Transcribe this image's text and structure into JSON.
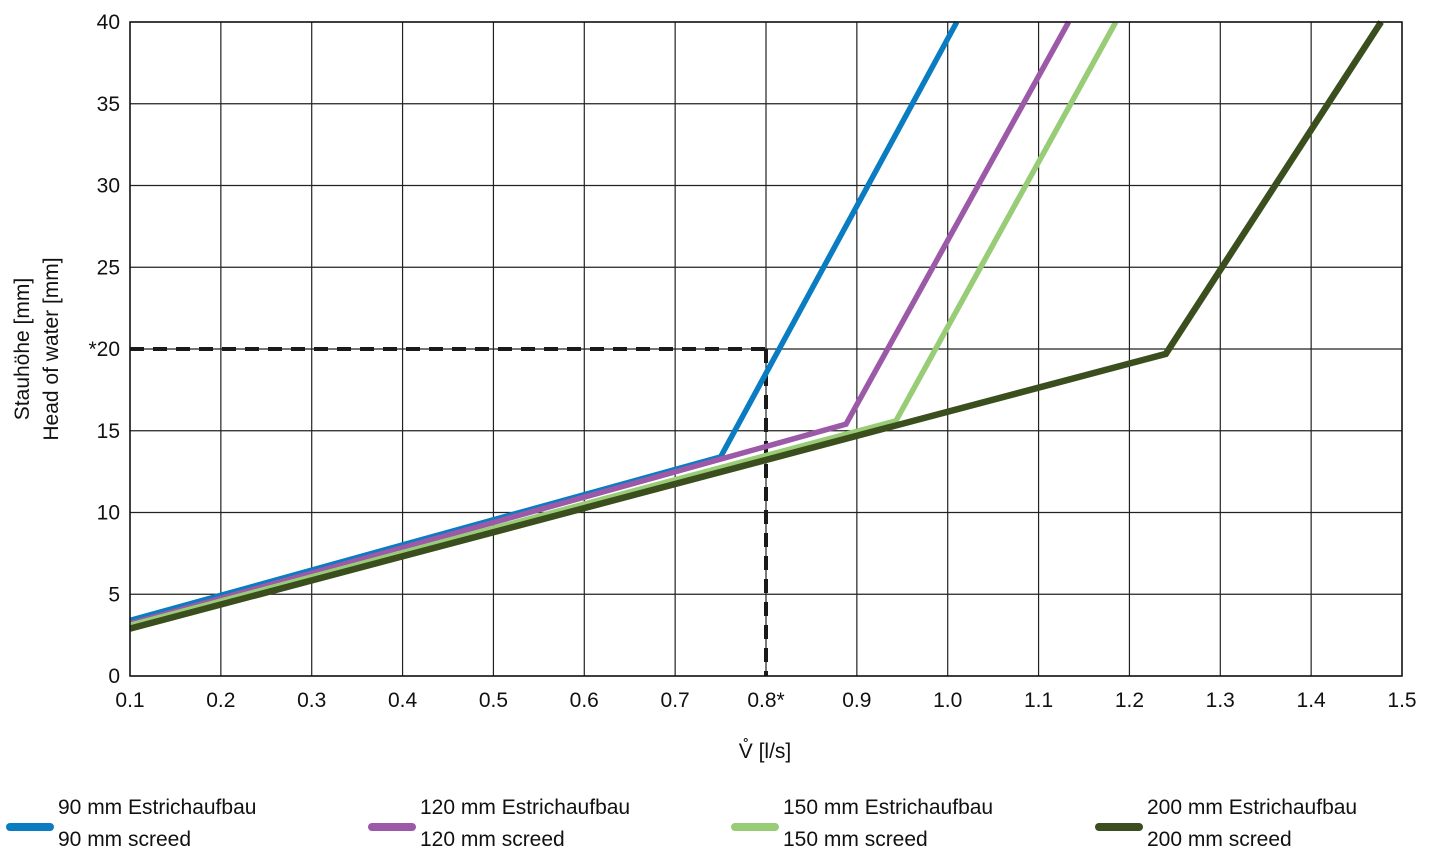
{
  "chart_data": {
    "type": "line",
    "title": "",
    "xlabel": "V̊ [l/s]",
    "ylabel_line1": "Stauhöhe [mm]",
    "ylabel_line2": "Head of water [mm]",
    "xlim": [
      0.1,
      1.5
    ],
    "ylim": [
      0,
      40
    ],
    "grid": true,
    "x_ticks": [
      {
        "value": 0.1,
        "label": "0.1"
      },
      {
        "value": 0.2,
        "label": "0.2"
      },
      {
        "value": 0.3,
        "label": "0.3"
      },
      {
        "value": 0.4,
        "label": "0.4"
      },
      {
        "value": 0.5,
        "label": "0.5"
      },
      {
        "value": 0.6,
        "label": "0.6"
      },
      {
        "value": 0.7,
        "label": "0.7"
      },
      {
        "value": 0.8,
        "label": "0.8*"
      },
      {
        "value": 0.9,
        "label": "0.9"
      },
      {
        "value": 1.0,
        "label": "1.0"
      },
      {
        "value": 1.1,
        "label": "1.1"
      },
      {
        "value": 1.2,
        "label": "1.2"
      },
      {
        "value": 1.3,
        "label": "1.3"
      },
      {
        "value": 1.4,
        "label": "1.4"
      },
      {
        "value": 1.5,
        "label": "1.5"
      }
    ],
    "y_ticks": [
      {
        "value": 0,
        "label": "0"
      },
      {
        "value": 5,
        "label": "5"
      },
      {
        "value": 10,
        "label": "10"
      },
      {
        "value": 15,
        "label": "15"
      },
      {
        "value": 20,
        "label": "*20"
      },
      {
        "value": 25,
        "label": "25"
      },
      {
        "value": 30,
        "label": "30"
      },
      {
        "value": 35,
        "label": "35"
      },
      {
        "value": 40,
        "label": "40"
      }
    ],
    "reference": {
      "x": 0.8,
      "y": 20,
      "style": "dashed",
      "color": "#1a1a1a"
    },
    "legend_placement": "bottom",
    "series": [
      {
        "name": "90 mm Estrichaufbau",
        "name_en": "90 mm screed",
        "color": "#0a7cc1",
        "x": [
          0.1,
          0.75,
          1.01
        ],
        "y": [
          3.4,
          13.4,
          40
        ]
      },
      {
        "name": "120 mm Estrichaufbau",
        "name_en": "120 mm screed",
        "color": "#9b59a8",
        "x": [
          0.1,
          0.888,
          1.133
        ],
        "y": [
          3.2,
          15.4,
          40
        ]
      },
      {
        "name": "150 mm Estrichaufbau",
        "name_en": "150 mm screed",
        "color": "#99cc77",
        "x": [
          0.1,
          0.943,
          1.185
        ],
        "y": [
          3.1,
          15.6,
          40
        ]
      },
      {
        "name": "200 mm Estrichaufbau",
        "name_en": "200 mm screed",
        "color": "#3b4f1e",
        "x": [
          0.1,
          1.24,
          1.477
        ],
        "y": [
          2.9,
          19.7,
          40
        ]
      }
    ]
  }
}
